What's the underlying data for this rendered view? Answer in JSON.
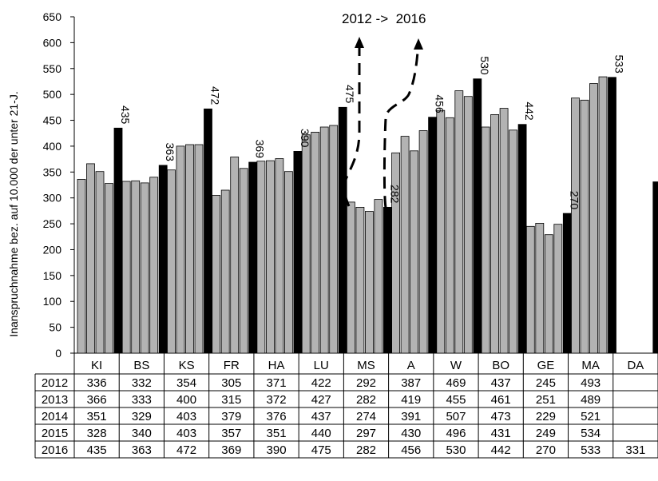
{
  "chart_data": {
    "type": "bar",
    "title": "",
    "annotation": "2012 ->  2016",
    "ylabel": "Inanspruchnahme bez. auf 10.000 der unter 21-J.",
    "xlabel": "",
    "ylim": [
      0,
      650
    ],
    "yticks": [
      0,
      50,
      100,
      150,
      200,
      250,
      300,
      350,
      400,
      450,
      500,
      550,
      600,
      650
    ],
    "grid": false,
    "legend": "none",
    "categories": [
      "KI",
      "BS",
      "KS",
      "FR",
      "HA",
      "LU",
      "MS",
      "A",
      "W",
      "BO",
      "GE",
      "MA",
      "DA"
    ],
    "series": [
      {
        "name": "2012",
        "color": "#b3b3b3",
        "values": [
          336,
          332,
          354,
          305,
          371,
          422,
          292,
          387,
          469,
          437,
          245,
          493,
          null
        ]
      },
      {
        "name": "2013",
        "color": "#b3b3b3",
        "values": [
          366,
          333,
          400,
          315,
          372,
          427,
          282,
          419,
          455,
          461,
          251,
          489,
          null
        ]
      },
      {
        "name": "2014",
        "color": "#b3b3b3",
        "values": [
          351,
          329,
          403,
          379,
          376,
          437,
          274,
          391,
          507,
          473,
          229,
          521,
          null
        ]
      },
      {
        "name": "2015",
        "color": "#b3b3b3",
        "values": [
          328,
          340,
          403,
          357,
          351,
          440,
          297,
          430,
          496,
          431,
          249,
          534,
          null
        ]
      },
      {
        "name": "2016",
        "color": "#000000",
        "values": [
          435,
          363,
          472,
          369,
          390,
          475,
          282,
          456,
          530,
          442,
          270,
          533,
          331
        ]
      }
    ],
    "data_labels_series": "2016"
  }
}
